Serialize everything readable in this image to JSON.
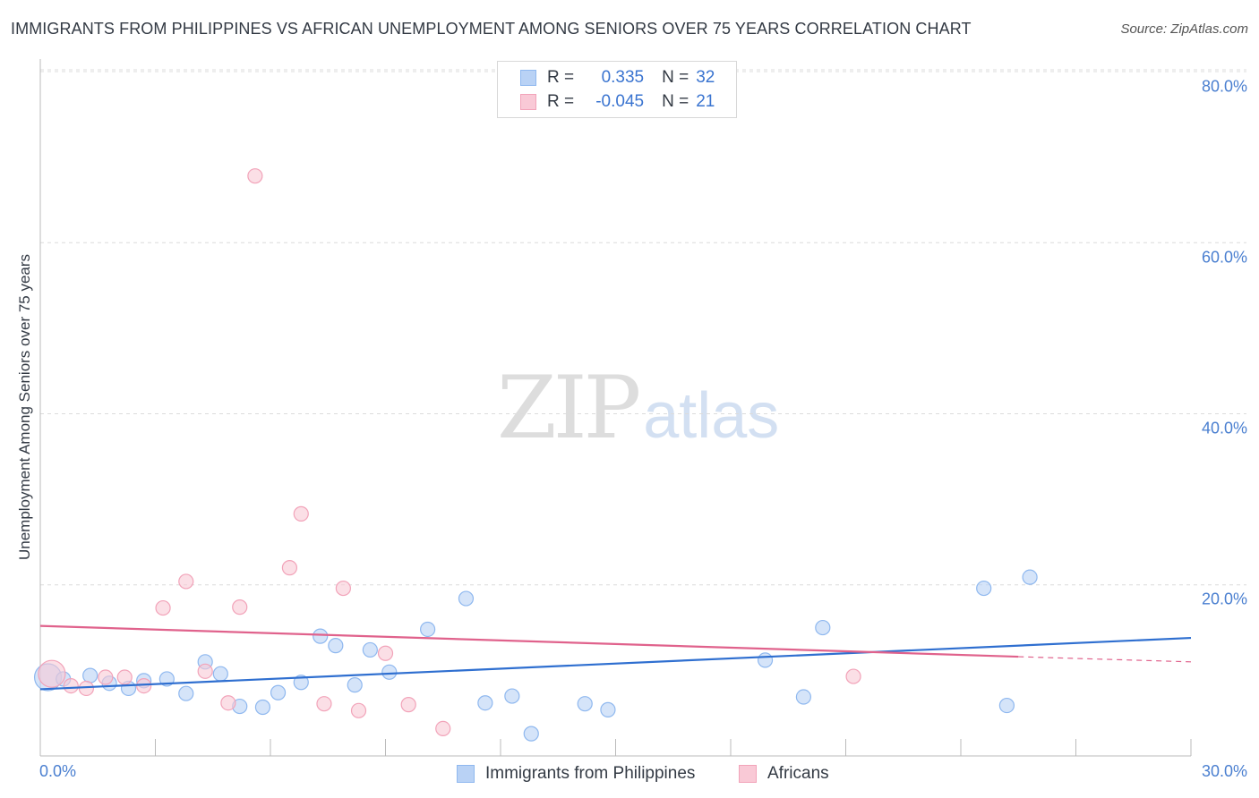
{
  "header": {
    "title": "IMMIGRANTS FROM PHILIPPINES VS AFRICAN UNEMPLOYMENT AMONG SENIORS OVER 75 YEARS CORRELATION CHART",
    "source": "Source: ZipAtlas.com"
  },
  "watermark": {
    "zip": "ZIP",
    "atlas": "atlas"
  },
  "legend": {
    "rows": [
      {
        "r_label": "R =",
        "r_value": "0.335",
        "n_label": "N =",
        "n_value": "32",
        "color": "#b9d2f5"
      },
      {
        "r_label": "R =",
        "r_value": "-0.045",
        "n_label": "N =",
        "n_value": "21",
        "color": "#f9c9d6"
      }
    ]
  },
  "chart_data": {
    "type": "scatter",
    "title": "IMMIGRANTS FROM PHILIPPINES VS AFRICAN UNEMPLOYMENT AMONG SENIORS OVER 75 YEARS CORRELATION CHART",
    "xlabel": "",
    "ylabel": "Unemployment Among Seniors over 75 years",
    "xlim": [
      0,
      30
    ],
    "ylim": [
      0,
      80
    ],
    "x_tick_labels": [
      "0.0%",
      "30.0%"
    ],
    "y_ticks": [
      20,
      40,
      60,
      80
    ],
    "y_tick_labels": [
      "20.0%",
      "40.0%",
      "60.0%",
      "80.0%"
    ],
    "grid": true,
    "series": [
      {
        "name": "Immigrants from Philippines",
        "color": "#8fb8ef",
        "fill": "#b9d2f5",
        "trend_color": "#2f6fd0",
        "trend": {
          "x": [
            0,
            30
          ],
          "y": [
            7.8,
            13.8
          ]
        },
        "points": [
          {
            "x": 0.2,
            "y": 9.2,
            "big": true
          },
          {
            "x": 0.6,
            "y": 9.0
          },
          {
            "x": 1.3,
            "y": 9.4
          },
          {
            "x": 1.8,
            "y": 8.5
          },
          {
            "x": 2.3,
            "y": 7.9
          },
          {
            "x": 2.7,
            "y": 8.8
          },
          {
            "x": 3.3,
            "y": 9.0
          },
          {
            "x": 3.8,
            "y": 7.3
          },
          {
            "x": 4.3,
            "y": 11.0
          },
          {
            "x": 4.7,
            "y": 9.6
          },
          {
            "x": 5.2,
            "y": 5.8
          },
          {
            "x": 5.8,
            "y": 5.7
          },
          {
            "x": 6.2,
            "y": 7.4
          },
          {
            "x": 6.8,
            "y": 8.6
          },
          {
            "x": 7.3,
            "y": 14.0
          },
          {
            "x": 7.7,
            "y": 12.9
          },
          {
            "x": 8.2,
            "y": 8.3
          },
          {
            "x": 8.6,
            "y": 12.4
          },
          {
            "x": 9.1,
            "y": 9.8
          },
          {
            "x": 10.1,
            "y": 14.8
          },
          {
            "x": 11.1,
            "y": 18.4
          },
          {
            "x": 11.6,
            "y": 6.2
          },
          {
            "x": 12.3,
            "y": 7.0
          },
          {
            "x": 12.8,
            "y": 2.6
          },
          {
            "x": 14.2,
            "y": 6.1
          },
          {
            "x": 14.8,
            "y": 5.4
          },
          {
            "x": 18.9,
            "y": 11.2
          },
          {
            "x": 19.9,
            "y": 6.9
          },
          {
            "x": 20.4,
            "y": 15.0
          },
          {
            "x": 24.6,
            "y": 19.6
          },
          {
            "x": 25.2,
            "y": 5.9
          },
          {
            "x": 25.8,
            "y": 20.9
          }
        ]
      },
      {
        "name": "Africans",
        "color": "#f2a3b9",
        "fill": "#f9c9d6",
        "trend_color": "#e0628c",
        "trend": {
          "x": [
            0,
            25.5
          ],
          "y": [
            15.2,
            11.6
          ]
        },
        "trend_dashed": {
          "x": [
            25.5,
            30
          ],
          "y": [
            11.6,
            11.0
          ]
        },
        "points": [
          {
            "x": 0.3,
            "y": 9.6,
            "big": true
          },
          {
            "x": 0.8,
            "y": 8.2
          },
          {
            "x": 1.2,
            "y": 7.9
          },
          {
            "x": 1.7,
            "y": 9.2
          },
          {
            "x": 2.2,
            "y": 9.2
          },
          {
            "x": 2.7,
            "y": 8.2
          },
          {
            "x": 3.2,
            "y": 17.3
          },
          {
            "x": 3.8,
            "y": 20.4
          },
          {
            "x": 4.3,
            "y": 9.9
          },
          {
            "x": 4.9,
            "y": 6.2
          },
          {
            "x": 5.2,
            "y": 17.4
          },
          {
            "x": 5.6,
            "y": 67.8
          },
          {
            "x": 6.5,
            "y": 22.0
          },
          {
            "x": 6.8,
            "y": 28.3
          },
          {
            "x": 7.4,
            "y": 6.1
          },
          {
            "x": 7.9,
            "y": 19.6
          },
          {
            "x": 8.3,
            "y": 5.3
          },
          {
            "x": 9.0,
            "y": 12.0
          },
          {
            "x": 9.6,
            "y": 6.0
          },
          {
            "x": 10.5,
            "y": 3.2
          },
          {
            "x": 21.2,
            "y": 9.3
          }
        ]
      }
    ]
  },
  "bottom_legend": [
    {
      "label": "Immigrants from Philippines",
      "color": "#b9d2f5"
    },
    {
      "label": "Africans",
      "color": "#f9c9d6"
    }
  ]
}
